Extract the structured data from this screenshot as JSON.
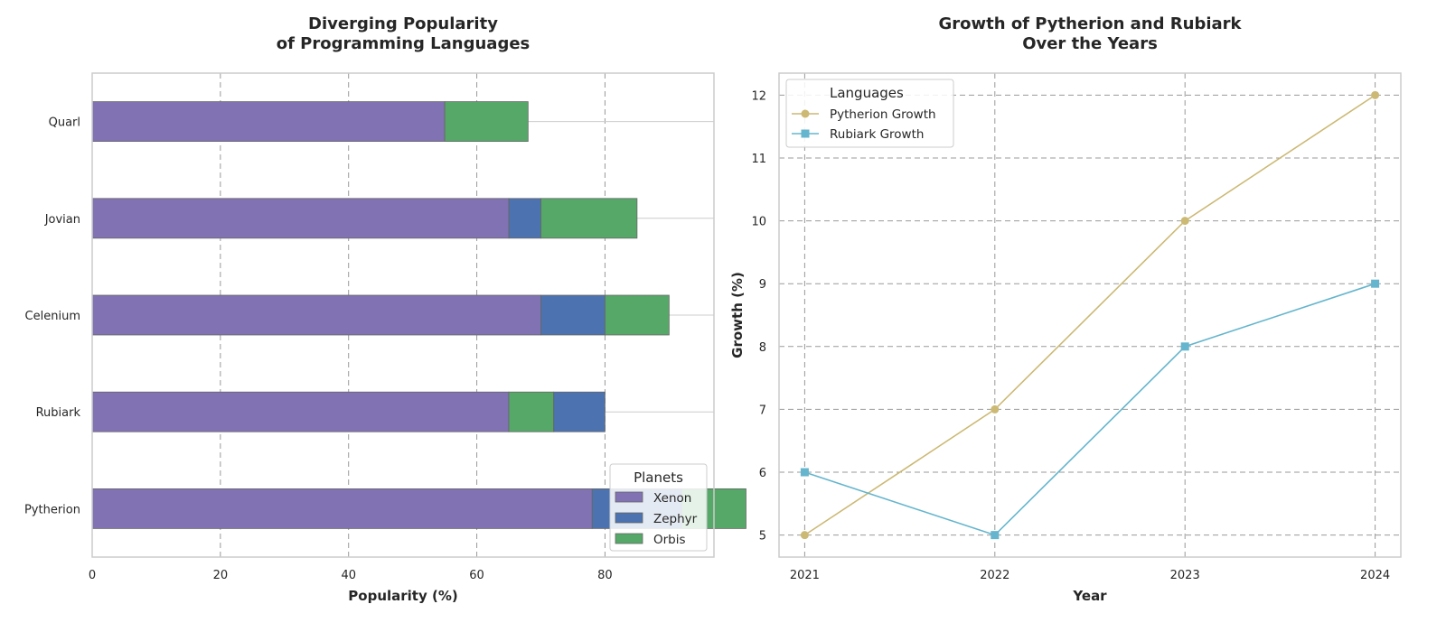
{
  "colors": {
    "xenon": "#8172b3",
    "zephyr": "#4c72b0",
    "orbis": "#55a868",
    "pytherion_line": "#ccb974",
    "rubiark_line": "#64b5cd",
    "grid": "#999999",
    "frame": "#cccccc"
  },
  "chart_data": [
    {
      "type": "bar",
      "orientation": "horizontal",
      "stacked": true,
      "title_line1": "Diverging Popularity",
      "title_line2": "of Programming Languages",
      "xlabel": "Popularity (%)",
      "ylabel": "",
      "xlim": [
        0,
        97
      ],
      "xticks": [
        0,
        20,
        40,
        60,
        80
      ],
      "categories": [
        "Pytherion",
        "Rubiark",
        "Celenium",
        "Jovian",
        "Quarl"
      ],
      "series": [
        {
          "name": "Xenon",
          "color_key": "xenon",
          "values": [
            78,
            65,
            70,
            65,
            55
          ]
        },
        {
          "name": "Zephyr",
          "color_key": "zephyr",
          "values": [
            14,
            8,
            10,
            5,
            0
          ]
        },
        {
          "name": "Orbis",
          "color_key": "orbis",
          "values": [
            10,
            7,
            10,
            15,
            13
          ]
        }
      ],
      "draw_order": [
        [
          "Xenon",
          "Zephyr",
          "Orbis"
        ],
        [
          "Xenon",
          "Orbis",
          "Zephyr"
        ],
        [
          "Xenon",
          "Zephyr",
          "Orbis"
        ],
        [
          "Xenon",
          "Zephyr",
          "Orbis"
        ],
        [
          "Xenon",
          "Zephyr",
          "Orbis"
        ]
      ],
      "legend_title": "Planets",
      "legend_position": "lower-right",
      "grid": true
    },
    {
      "type": "line",
      "title_line1": "Growth of Pytherion and Rubiark",
      "title_line2": "Over the Years",
      "xlabel": "Year",
      "ylabel": "Growth (%)",
      "x": [
        2021,
        2022,
        2023,
        2024
      ],
      "ylim": [
        4.65,
        12.35
      ],
      "yticks": [
        5,
        6,
        7,
        8,
        9,
        10,
        11,
        12
      ],
      "series": [
        {
          "name": "Pytherion Growth",
          "color_key": "pytherion_line",
          "marker": "circle",
          "values": [
            5,
            7,
            10,
            12
          ]
        },
        {
          "name": "Rubiark Growth",
          "color_key": "rubiark_line",
          "marker": "square",
          "values": [
            6,
            5,
            8,
            9
          ]
        }
      ],
      "legend_title": "Languages",
      "legend_position": "upper-left",
      "grid": true
    }
  ]
}
